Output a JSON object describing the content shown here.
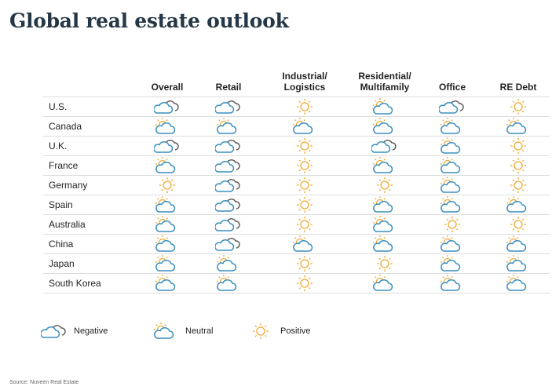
{
  "title": "Global real estate outlook",
  "columns": [
    "Overall",
    "Retail",
    "Industrial/ Logistics",
    "Residential/ Multifamily",
    "Office",
    "RE Debt"
  ],
  "rows": [
    {
      "country": "U.S.",
      "ratings": [
        "negative",
        "negative",
        "positive",
        "neutral",
        "negative",
        "positive"
      ]
    },
    {
      "country": "Canada",
      "ratings": [
        "neutral",
        "neutral",
        "neutral",
        "neutral",
        "neutral",
        "neutral"
      ]
    },
    {
      "country": "U.K.",
      "ratings": [
        "negative",
        "negative",
        "positive",
        "negative",
        "neutral",
        "positive"
      ]
    },
    {
      "country": "France",
      "ratings": [
        "neutral",
        "negative",
        "positive",
        "neutral",
        "neutral",
        "positive"
      ]
    },
    {
      "country": "Germany",
      "ratings": [
        "positive",
        "negative",
        "positive",
        "positive",
        "neutral",
        "positive"
      ]
    },
    {
      "country": "Spain",
      "ratings": [
        "neutral",
        "negative",
        "positive",
        "neutral",
        "neutral",
        "neutral"
      ]
    },
    {
      "country": "Australia",
      "ratings": [
        "neutral",
        "negative",
        "positive",
        "neutral",
        "positive",
        "positive"
      ]
    },
    {
      "country": "China",
      "ratings": [
        "neutral",
        "negative",
        "neutral",
        "neutral",
        "neutral",
        "neutral"
      ]
    },
    {
      "country": "Japan",
      "ratings": [
        "neutral",
        "neutral",
        "positive",
        "positive",
        "neutral",
        "neutral"
      ]
    },
    {
      "country": "South Korea",
      "ratings": [
        "neutral",
        "neutral",
        "positive",
        "neutral",
        "neutral",
        "neutral"
      ]
    }
  ],
  "legend": {
    "negative": "Negative",
    "neutral": "Neutral",
    "positive": "Positive"
  },
  "source": "Source: Nuveen Real Estate",
  "colors": {
    "cloud": "#3a8fc0",
    "back_cloud": "#555555",
    "sun": "#f0a830",
    "title": "#243746"
  }
}
